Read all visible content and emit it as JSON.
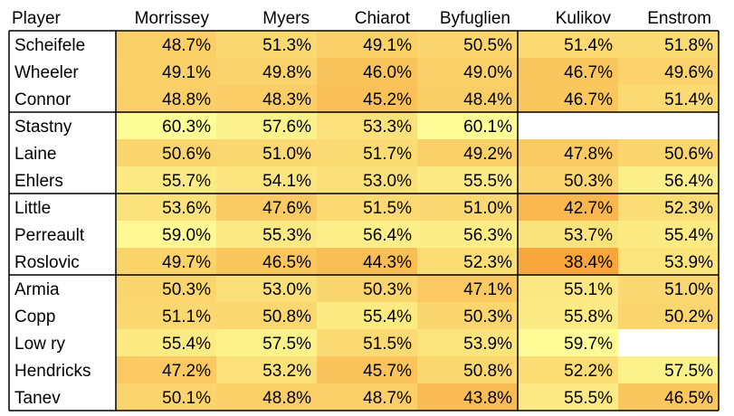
{
  "chart_data": {
    "type": "heatmap",
    "corner_label": "Player",
    "columns": [
      "Morrissey",
      "Myers",
      "Chiarot",
      "Byfuglien",
      "Kulikov",
      "Enstrom"
    ],
    "rows": [
      {
        "player": "Scheifele",
        "values": [
          "48.7%",
          "51.3%",
          "49.1%",
          "50.5%",
          "51.4%",
          "51.8%"
        ]
      },
      {
        "player": "Wheeler",
        "values": [
          "49.1%",
          "49.8%",
          "46.0%",
          "49.0%",
          "46.7%",
          "49.6%"
        ]
      },
      {
        "player": "Connor",
        "values": [
          "48.8%",
          "48.3%",
          "45.2%",
          "48.4%",
          "46.7%",
          "51.4%"
        ]
      },
      {
        "player": "Stastny",
        "values": [
          "60.3%",
          "57.6%",
          "53.3%",
          "60.1%",
          "",
          ""
        ]
      },
      {
        "player": "Laine",
        "values": [
          "50.6%",
          "51.0%",
          "51.7%",
          "49.2%",
          "47.8%",
          "50.6%"
        ]
      },
      {
        "player": "Ehlers",
        "values": [
          "55.7%",
          "54.1%",
          "53.0%",
          "55.5%",
          "50.3%",
          "56.4%"
        ]
      },
      {
        "player": "Little",
        "values": [
          "53.6%",
          "47.6%",
          "51.5%",
          "51.0%",
          "42.7%",
          "52.3%"
        ]
      },
      {
        "player": "Perreault",
        "values": [
          "59.0%",
          "55.3%",
          "56.4%",
          "56.3%",
          "53.7%",
          "55.4%"
        ]
      },
      {
        "player": "Roslovic",
        "values": [
          "49.7%",
          "46.5%",
          "44.3%",
          "52.3%",
          "38.4%",
          "53.9%"
        ]
      },
      {
        "player": "Armia",
        "values": [
          "50.3%",
          "53.0%",
          "50.3%",
          "47.1%",
          "55.1%",
          "51.0%"
        ]
      },
      {
        "player": "Copp",
        "values": [
          "51.1%",
          "50.8%",
          "55.4%",
          "50.3%",
          "55.8%",
          "50.2%"
        ]
      },
      {
        "player": "Low ry",
        "values": [
          "55.4%",
          "57.5%",
          "51.5%",
          "53.9%",
          "59.7%",
          ""
        ]
      },
      {
        "player": "Hendricks",
        "values": [
          "47.2%",
          "53.2%",
          "45.7%",
          "50.8%",
          "52.2%",
          "57.5%"
        ]
      },
      {
        "player": "Tanev",
        "values": [
          "50.1%",
          "48.8%",
          "48.7%",
          "43.8%",
          "55.5%",
          "46.5%"
        ]
      }
    ],
    "row_groups": [
      [
        0,
        2
      ],
      [
        3,
        5
      ],
      [
        6,
        8
      ],
      [
        9,
        13
      ]
    ],
    "column_groups": [
      [
        0,
        3
      ],
      [
        4,
        5
      ]
    ],
    "color_scale": {
      "low": 38.4,
      "high": 60.3,
      "low_color": "#f8a63c",
      "high_color": "#fdfd98"
    }
  }
}
